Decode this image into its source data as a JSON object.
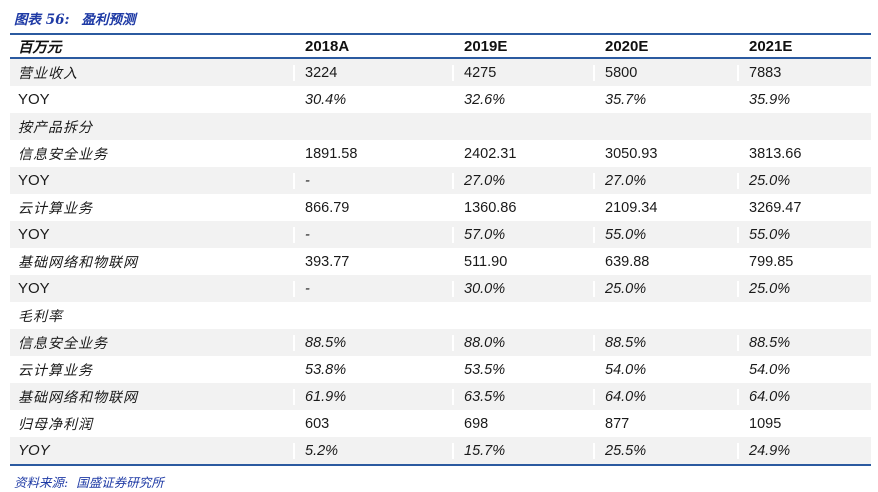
{
  "title": {
    "prefix": "图表 56:",
    "text": "盈利预测"
  },
  "table": {
    "unit_label": "百万元",
    "columns": [
      "2018A",
      "2019E",
      "2020E",
      "2021E"
    ],
    "rows": [
      {
        "label": "营业收入",
        "label_lang": "cn",
        "italic": false,
        "values": [
          "3224",
          "4275",
          "5800",
          "7883"
        ]
      },
      {
        "label": "YOY",
        "label_lang": "en",
        "italic": true,
        "values": [
          "30.4%",
          "32.6%",
          "35.7%",
          "35.9%"
        ]
      },
      {
        "label": "按产品拆分",
        "label_lang": "cn",
        "section": true,
        "italic": false,
        "values": [
          "",
          "",
          "",
          ""
        ]
      },
      {
        "label": "信息安全业务",
        "label_lang": "cn",
        "italic": false,
        "values": [
          "1891.58",
          "2402.31",
          "3050.93",
          "3813.66"
        ]
      },
      {
        "label": "YOY",
        "label_lang": "en",
        "italic": true,
        "values": [
          "-",
          "27.0%",
          "27.0%",
          "25.0%"
        ]
      },
      {
        "label": "云计算业务",
        "label_lang": "cn",
        "italic": false,
        "values": [
          "866.79",
          "1360.86",
          "2109.34",
          "3269.47"
        ]
      },
      {
        "label": "YOY",
        "label_lang": "en",
        "italic": true,
        "values": [
          "-",
          "57.0%",
          "55.0%",
          "55.0%"
        ]
      },
      {
        "label": "基础网络和物联网",
        "label_lang": "cn",
        "italic": false,
        "values": [
          "393.77",
          "511.90",
          "639.88",
          "799.85"
        ]
      },
      {
        "label": "YOY",
        "label_lang": "en",
        "italic": true,
        "values": [
          "-",
          "30.0%",
          "25.0%",
          "25.0%"
        ]
      },
      {
        "label": "毛利率",
        "label_lang": "cn",
        "section": true,
        "italic": false,
        "values": [
          "",
          "",
          "",
          ""
        ]
      },
      {
        "label": "信息安全业务",
        "label_lang": "cn",
        "italic": true,
        "values": [
          "88.5%",
          "88.0%",
          "88.5%",
          "88.5%"
        ]
      },
      {
        "label": "云计算业务",
        "label_lang": "cn",
        "italic": true,
        "values": [
          "53.8%",
          "53.5%",
          "54.0%",
          "54.0%"
        ]
      },
      {
        "label": "基础网络和物联网",
        "label_lang": "cn",
        "italic": true,
        "values": [
          "61.9%",
          "63.5%",
          "64.0%",
          "64.0%"
        ]
      },
      {
        "label": "归母净利润",
        "label_lang": "cn",
        "italic": false,
        "values": [
          "603",
          "698",
          "877",
          "1095"
        ]
      },
      {
        "label": "YOY",
        "label_lang": "en",
        "label_italic": true,
        "italic": true,
        "values": [
          "5.2%",
          "15.7%",
          "25.5%",
          "24.9%"
        ]
      }
    ]
  },
  "source": {
    "prefix": "资料来源:",
    "text": "国盛证券研究所"
  },
  "colors": {
    "accent_blue": "#1e3aa5",
    "rule_blue": "#2b5aa0",
    "row_shade": "#f2f2f2"
  }
}
